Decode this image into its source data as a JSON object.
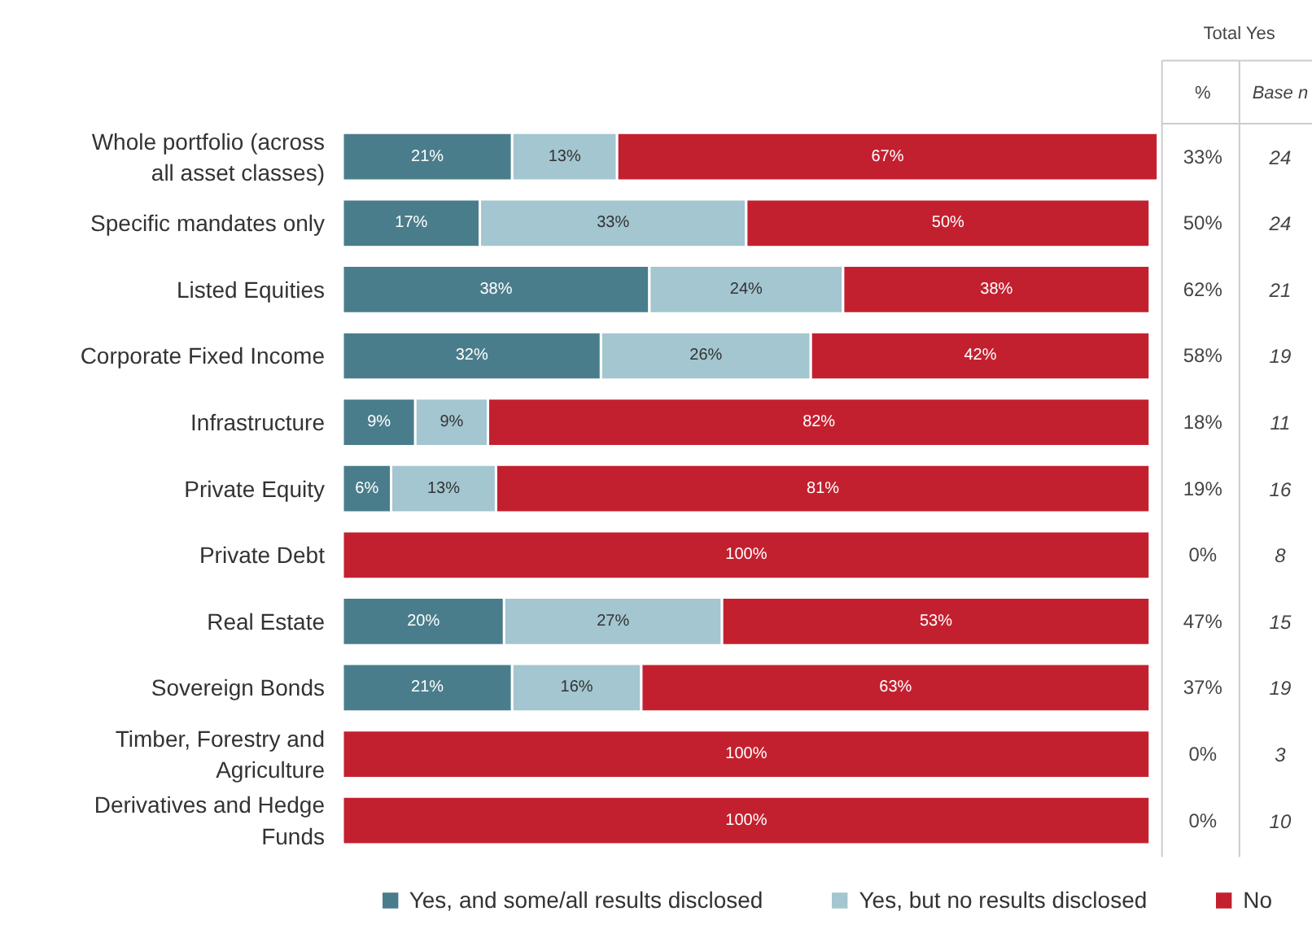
{
  "chart_data": {
    "type": "bar",
    "orientation": "horizontal",
    "stacked": true,
    "xlim": [
      0,
      101
    ],
    "tick_labels": "y",
    "grid": false,
    "legend": "bottom",
    "categories": [
      "Whole portfolio (across\nall asset classes)",
      "Specific mandates only",
      "Listed Equities",
      "Corporate Fixed Income",
      "Infrastructure",
      "Private Equity",
      "Private Debt",
      "Real Estate",
      "Sovereign Bonds",
      "Timber, Forestry and\nAgriculture",
      "Derivatives and Hedge\nFunds"
    ],
    "series": [
      {
        "name": "Yes, and some/all results disclosed",
        "color": "#4a7d8b",
        "values": [
          21,
          17,
          38,
          32,
          9,
          6,
          0,
          20,
          21,
          0,
          0
        ],
        "value_labels": [
          "21%",
          "17%",
          "38%",
          "32%",
          "9%",
          "6%",
          null,
          "20%",
          "21%",
          null,
          null
        ]
      },
      {
        "name": "Yes, but no results disclosed",
        "color": "#a3c6d0",
        "values": [
          13,
          33,
          24,
          26,
          9,
          13,
          0,
          27,
          16,
          0,
          0
        ],
        "value_labels": [
          "13%",
          "33%",
          "24%",
          "26%",
          "9%",
          "13%",
          null,
          "27%",
          "16%",
          null,
          null
        ]
      },
      {
        "name": "No",
        "color": "#c3202f",
        "values": [
          67,
          50,
          38,
          42,
          82,
          81,
          100,
          53,
          63,
          100,
          100
        ],
        "value_labels": [
          "67%",
          "50%",
          "38%",
          "42%",
          "82%",
          "81%",
          "100%",
          "53%",
          "63%",
          "100%",
          "100%"
        ]
      }
    ],
    "annotations": [
      "Total Yes",
      "%",
      "Base n",
      "33%",
      "24",
      "50%",
      "24",
      "62%",
      "21",
      "58%",
      "19",
      "18%",
      "11",
      "19%",
      "16",
      "0%",
      "8",
      "47%",
      "15",
      "37%",
      "19",
      "0%",
      "3",
      "0%",
      "10"
    ]
  }
}
